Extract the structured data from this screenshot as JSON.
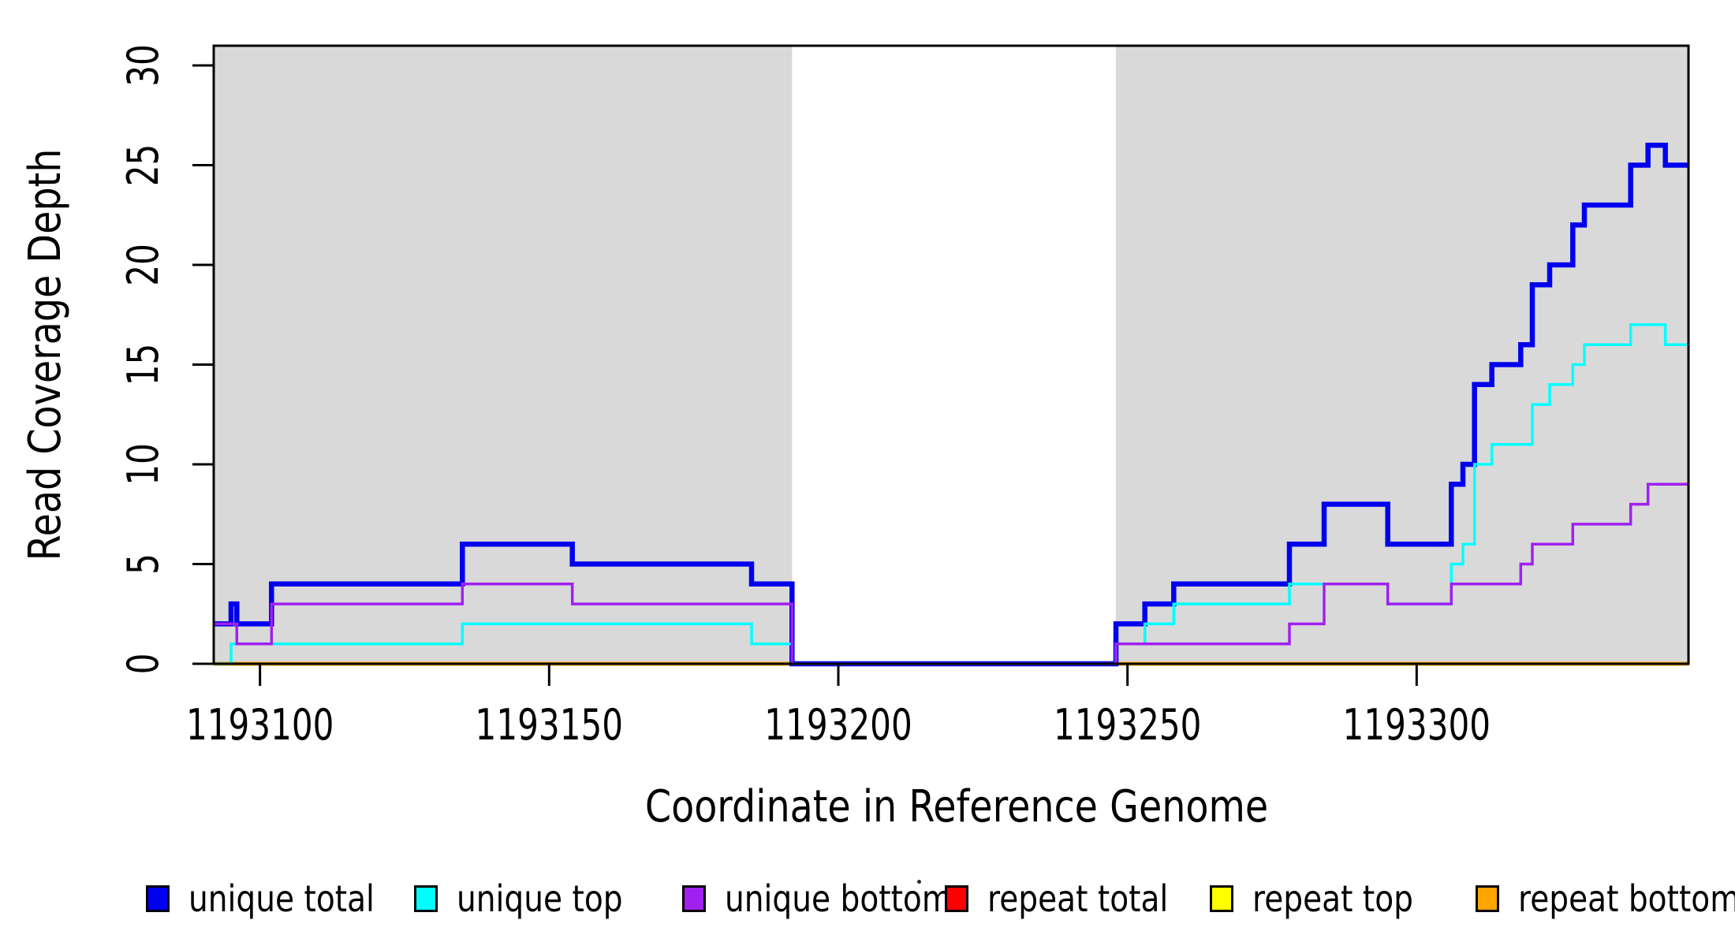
{
  "figure": {
    "ylabel": "Read Coverage Depth",
    "xlabel": "Coordinate in Reference Genome"
  },
  "legend": {
    "items": [
      {
        "label": "unique total",
        "color": "#0000ee"
      },
      {
        "label": "unique top",
        "color": "#00ffff"
      },
      {
        "label": "unique bottom",
        "color": "#a020f0"
      },
      {
        "label": "repeat total",
        "color": "#ff0000"
      },
      {
        "label": "repeat top",
        "color": "#ffff00"
      },
      {
        "label": "repeat bottom",
        "color": "#ffa500"
      }
    ]
  },
  "chart_data": {
    "type": "line",
    "subtype": "step-coverage",
    "title": "",
    "xlabel": "Coordinate in Reference Genome",
    "ylabel": "Read Coverage Depth",
    "xlim": [
      1193092,
      1193347
    ],
    "ylim": [
      0,
      30
    ],
    "xticks": [
      1193100,
      1193150,
      1193200,
      1193250,
      1193300
    ],
    "yticks": [
      0,
      5,
      10,
      15,
      20,
      25,
      30
    ],
    "grid": false,
    "legend_position": "bottom",
    "plot_background": "#ffffff",
    "shaded_regions": [
      {
        "name": "shaded-region-left",
        "x0": 1193092,
        "x1": 1193192,
        "color": "#d9d9d9"
      },
      {
        "name": "shaded-region-right",
        "x0": 1193248,
        "x1": 1193347,
        "color": "#d9d9d9"
      }
    ],
    "series": [
      {
        "name": "repeat total",
        "color": "#ff0000",
        "stroke_width": 5,
        "breakpoints": [
          [
            1193092,
            0
          ]
        ]
      },
      {
        "name": "repeat top",
        "color": "#ffff00",
        "stroke_width": 5,
        "breakpoints": [
          [
            1193092,
            0
          ]
        ]
      },
      {
        "name": "repeat bottom",
        "color": "#ffa500",
        "stroke_width": 5,
        "breakpoints": [
          [
            1193092,
            0
          ]
        ]
      },
      {
        "name": "unique total",
        "color": "#0000ee",
        "stroke_width": 6.5,
        "breakpoints": [
          [
            1193092,
            2
          ],
          [
            1193095,
            3
          ],
          [
            1193096,
            2
          ],
          [
            1193102,
            4
          ],
          [
            1193135,
            6
          ],
          [
            1193154,
            5
          ],
          [
            1193185,
            4
          ],
          [
            1193192,
            0
          ],
          [
            1193248,
            2
          ],
          [
            1193253,
            3
          ],
          [
            1193258,
            4
          ],
          [
            1193278,
            6
          ],
          [
            1193284,
            8
          ],
          [
            1193295,
            6
          ],
          [
            1193306,
            9
          ],
          [
            1193308,
            10
          ],
          [
            1193310,
            14
          ],
          [
            1193313,
            15
          ],
          [
            1193318,
            16
          ],
          [
            1193320,
            19
          ],
          [
            1193323,
            20
          ],
          [
            1193327,
            22
          ],
          [
            1193329,
            23
          ],
          [
            1193337,
            25
          ],
          [
            1193340,
            26
          ],
          [
            1193343,
            25
          ]
        ]
      },
      {
        "name": "unique top",
        "color": "#00ffff",
        "stroke_width": 3.5,
        "breakpoints": [
          [
            1193092,
            0
          ],
          [
            1193095,
            1
          ],
          [
            1193135,
            2
          ],
          [
            1193185,
            1
          ],
          [
            1193192,
            0
          ],
          [
            1193248,
            1
          ],
          [
            1193253,
            2
          ],
          [
            1193258,
            3
          ],
          [
            1193278,
            4
          ],
          [
            1193295,
            3
          ],
          [
            1193306,
            5
          ],
          [
            1193308,
            6
          ],
          [
            1193310,
            10
          ],
          [
            1193313,
            11
          ],
          [
            1193320,
            13
          ],
          [
            1193323,
            14
          ],
          [
            1193327,
            15
          ],
          [
            1193329,
            16
          ],
          [
            1193337,
            17
          ],
          [
            1193343,
            16
          ]
        ]
      },
      {
        "name": "unique bottom",
        "color": "#a020f0",
        "stroke_width": 3.5,
        "breakpoints": [
          [
            1193092,
            2
          ],
          [
            1193096,
            1
          ],
          [
            1193102,
            3
          ],
          [
            1193135,
            4
          ],
          [
            1193154,
            3
          ],
          [
            1193192,
            0
          ],
          [
            1193248,
            1
          ],
          [
            1193278,
            2
          ],
          [
            1193284,
            4
          ],
          [
            1193295,
            3
          ],
          [
            1193306,
            4
          ],
          [
            1193318,
            5
          ],
          [
            1193320,
            6
          ],
          [
            1193327,
            7
          ],
          [
            1193337,
            8
          ],
          [
            1193340,
            9
          ]
        ]
      }
    ]
  }
}
